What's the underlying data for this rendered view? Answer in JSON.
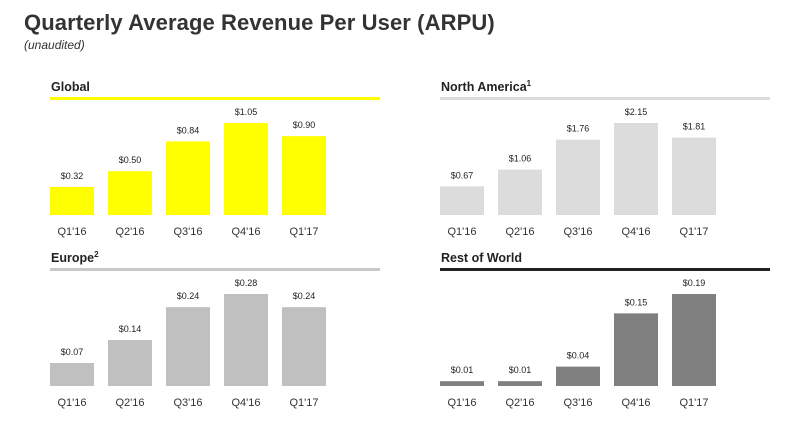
{
  "title": "Quarterly Average Revenue Per User (ARPU)",
  "subtitle": "(unaudited)",
  "chart_data": [
    {
      "type": "bar",
      "title": "Global",
      "title_sup": "",
      "categories": [
        "Q1'16",
        "Q2'16",
        "Q3'16",
        "Q4'16",
        "Q1'17"
      ],
      "values": [
        0.32,
        0.5,
        0.84,
        1.05,
        0.9
      ],
      "labels": [
        "$0.32",
        "$0.50",
        "$0.84",
        "$1.05",
        "$0.90"
      ],
      "ylim": [
        0,
        1.05
      ],
      "bar_color": "#ffff00",
      "rule_color": "#ffff00"
    },
    {
      "type": "bar",
      "title": "North America",
      "title_sup": "1",
      "categories": [
        "Q1'16",
        "Q2'16",
        "Q3'16",
        "Q4'16",
        "Q1'17"
      ],
      "values": [
        0.67,
        1.06,
        1.76,
        2.15,
        1.81
      ],
      "labels": [
        "$0.67",
        "$1.06",
        "$1.76",
        "$2.15",
        "$1.81"
      ],
      "ylim": [
        0,
        2.15
      ],
      "bar_color": "#dcdcdc",
      "rule_color": "#dcdcdc"
    },
    {
      "type": "bar",
      "title": "Europe",
      "title_sup": "2",
      "categories": [
        "Q1'16",
        "Q2'16",
        "Q3'16",
        "Q4'16",
        "Q1'17"
      ],
      "values": [
        0.07,
        0.14,
        0.24,
        0.28,
        0.24
      ],
      "labels": [
        "$0.07",
        "$0.14",
        "$0.24",
        "$0.28",
        "$0.24"
      ],
      "ylim": [
        0,
        0.28
      ],
      "bar_color": "#c0c0c0",
      "rule_color": "#c8c8c8"
    },
    {
      "type": "bar",
      "title": "Rest of World",
      "title_sup": "",
      "categories": [
        "Q1'16",
        "Q2'16",
        "Q3'16",
        "Q4'16",
        "Q1'17"
      ],
      "values": [
        0.01,
        0.01,
        0.04,
        0.15,
        0.19
      ],
      "labels": [
        "$0.01",
        "$0.01",
        "$0.04",
        "$0.15",
        "$0.19"
      ],
      "ylim": [
        0,
        0.19
      ],
      "bar_color": "#808080",
      "rule_color": "#222222"
    }
  ]
}
